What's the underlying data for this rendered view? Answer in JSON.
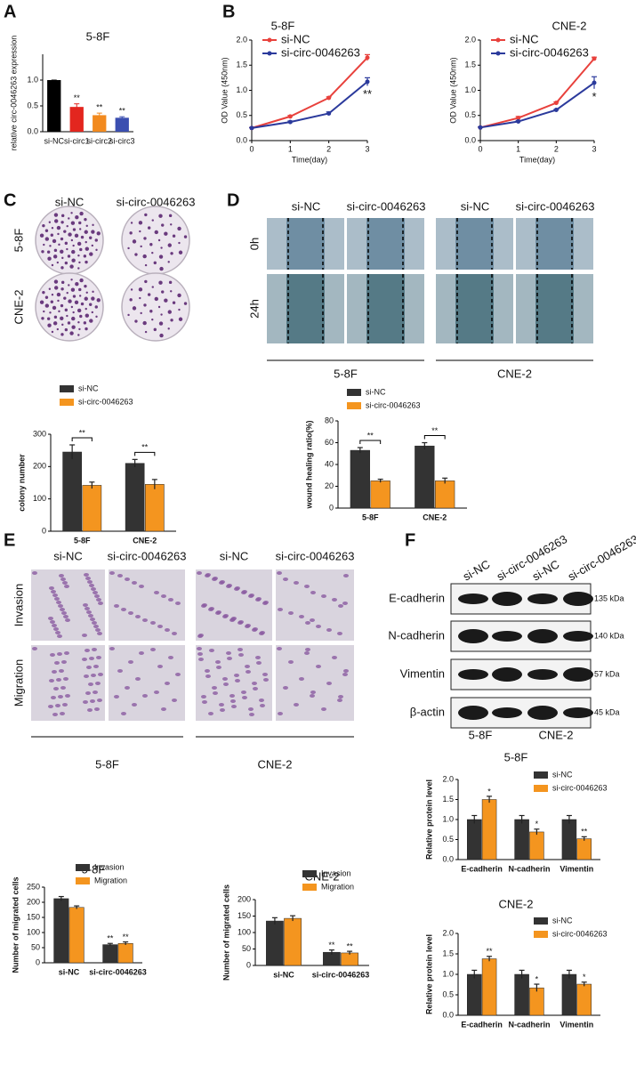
{
  "figure": {
    "panel_labels": [
      "A",
      "B",
      "C",
      "D",
      "E",
      "F"
    ],
    "panel_c": {
      "columns": [
        "si-NC",
        "si-circ-0046263"
      ],
      "rows": [
        "5-8F",
        "CNE-2"
      ]
    },
    "panel_d": {
      "columns": [
        "si-NC",
        "si-circ-0046263",
        "si-NC",
        "si-circ-0046263"
      ],
      "rows": [
        "0h",
        "24h"
      ],
      "groups": [
        "5-8F",
        "CNE-2"
      ]
    },
    "panel_e": {
      "columns": [
        "si-NC",
        "si-circ-0046263",
        "si-NC",
        "si-circ-0046263"
      ],
      "rows": [
        "Invasion",
        "Migration"
      ],
      "groups": [
        "5-8F",
        "CNE-2"
      ]
    },
    "panel_f": {
      "lanes": [
        "si-NC",
        "si-circ-0046263",
        "si-NC",
        "si-circ-0046263"
      ],
      "proteins": [
        "E-cadherin",
        "N-cadherin",
        "Vimentin",
        "β-actin"
      ],
      "sizes": [
        "135 kDa",
        "140 kDa",
        "57 kDa",
        "45 kDa"
      ],
      "groups": [
        "5-8F",
        "CNE-2"
      ]
    }
  },
  "chart_data": [
    {
      "type": "bar",
      "title": "5-8F",
      "y_label": "relative circ-0046263 expression",
      "categories": [
        "si-NC",
        "si-circ1",
        "si-circ2",
        "si-circ3"
      ],
      "values": [
        1.0,
        0.48,
        0.32,
        0.27
      ],
      "errors": [
        0,
        0.06,
        0.04,
        0.02
      ],
      "colors": [
        "#000000",
        "#e3261f",
        "#f28a1f",
        "#3b4fb0"
      ],
      "significance": [
        null,
        "**",
        "**",
        "**"
      ],
      "ylim": [
        0,
        1.5
      ],
      "yticks": [
        {
          "value": 0,
          "label": "0.0"
        },
        {
          "value": 0.5,
          "label": "0.5"
        },
        {
          "value": 1.0,
          "label": "1.0"
        }
      ]
    },
    {
      "type": "line",
      "title": "5-8F",
      "x_label": "Time(day)",
      "y_label": "OD Value (450nm)",
      "legend": "upper left",
      "x": [
        0,
        1,
        2,
        3
      ],
      "xlim": [
        0,
        3
      ],
      "xticks": [
        0,
        1,
        2,
        3
      ],
      "ylim": [
        0,
        2.0
      ],
      "yticks": [
        {
          "value": 0,
          "label": "0.0"
        },
        {
          "value": 0.5,
          "label": "0.5"
        },
        {
          "value": 1.0,
          "label": "1.0"
        },
        {
          "value": 1.5,
          "label": "1.5"
        },
        {
          "value": 2.0,
          "label": "2.0"
        }
      ],
      "series": [
        {
          "name": "si-NC",
          "color": "#e8413c",
          "values": [
            0.25,
            0.48,
            0.85,
            1.65
          ],
          "errors": [
            0.01,
            0.02,
            0.02,
            0.06
          ]
        },
        {
          "name": "si-circ-0046263",
          "color": "#2b3a9c",
          "values": [
            0.25,
            0.37,
            0.54,
            1.17
          ],
          "errors": [
            0.01,
            0.02,
            0.03,
            0.08
          ],
          "significance": [
            null,
            null,
            null,
            "**"
          ]
        }
      ]
    },
    {
      "type": "line",
      "title": "CNE-2",
      "x_label": "Time(day)",
      "y_label": "OD Value (450nm)",
      "legend": "upper left",
      "x": [
        0,
        1,
        2,
        3
      ],
      "xlim": [
        0,
        3
      ],
      "xticks": [
        0,
        1,
        2,
        3
      ],
      "ylim": [
        0,
        2.0
      ],
      "yticks": [
        {
          "value": 0,
          "label": "0.0"
        },
        {
          "value": 0.5,
          "label": "0.5"
        },
        {
          "value": 1.0,
          "label": "1.0"
        },
        {
          "value": 1.5,
          "label": "1.5"
        },
        {
          "value": 2.0,
          "label": "2.0"
        }
      ],
      "series": [
        {
          "name": "si-NC",
          "color": "#e8413c",
          "values": [
            0.26,
            0.45,
            0.75,
            1.63
          ],
          "errors": [
            0.01,
            0.03,
            0.02,
            0.03
          ]
        },
        {
          "name": "si-circ-0046263",
          "color": "#2b3a9c",
          "values": [
            0.26,
            0.38,
            0.61,
            1.15
          ],
          "errors": [
            0.01,
            0.02,
            0.01,
            0.12
          ],
          "significance": [
            null,
            null,
            null,
            "*"
          ]
        }
      ]
    },
    {
      "type": "bar",
      "y_label": "colony number",
      "legend": "upper left",
      "bracket": true,
      "categories": [
        "5-8F",
        "CNE-2"
      ],
      "ylim": [
        0,
        300
      ],
      "yticks": [
        0,
        100,
        200,
        300
      ],
      "series": [
        {
          "name": "si-NC",
          "color": "#333333",
          "values": [
            245,
            210
          ],
          "errors": [
            22,
            12
          ]
        },
        {
          "name": "si-circ-0046263",
          "color": "#f4951f",
          "values": [
            142,
            145
          ],
          "errors": [
            10,
            15
          ],
          "significance": [
            "**",
            "**"
          ]
        }
      ]
    },
    {
      "type": "bar",
      "y_label": "wound healing ratio(%)",
      "legend": "upper left",
      "bracket": true,
      "categories": [
        "5-8F",
        "CNE-2"
      ],
      "ylim": [
        0,
        80
      ],
      "yticks": [
        0,
        20,
        40,
        60,
        80
      ],
      "series": [
        {
          "name": "si-NC",
          "color": "#333333",
          "values": [
            53,
            57
          ],
          "errors": [
            2.5,
            3
          ]
        },
        {
          "name": "si-circ-0046263",
          "color": "#f4951f",
          "values": [
            25,
            25
          ],
          "errors": [
            1.5,
            2.5
          ],
          "significance": [
            "**",
            "**"
          ]
        }
      ]
    },
    {
      "type": "bar",
      "title": "5-8F",
      "y_label": "Number of migrated cells",
      "legend": "upper right",
      "categories": [
        "si-NC",
        "si-circ-0046263"
      ],
      "ylim": [
        0,
        250
      ],
      "yticks": [
        0,
        50,
        100,
        150,
        200,
        250
      ],
      "series": [
        {
          "name": "Invasion",
          "color": "#333333",
          "values": [
            212,
            60
          ],
          "errors": [
            7,
            4
          ],
          "significance": [
            null,
            "**"
          ]
        },
        {
          "name": "Migration",
          "color": "#f4951f",
          "values": [
            183,
            64
          ],
          "errors": [
            5,
            5
          ],
          "significance": [
            null,
            "**"
          ]
        }
      ]
    },
    {
      "type": "bar",
      "title": "CNE-2",
      "y_label": "Number of migrated cells",
      "legend": "upper right",
      "categories": [
        "si-NC",
        "si-circ-0046263"
      ],
      "ylim": [
        0,
        200
      ],
      "yticks": [
        0,
        50,
        100,
        150,
        200
      ],
      "series": [
        {
          "name": "Invasion",
          "color": "#333333",
          "values": [
            135,
            40
          ],
          "errors": [
            10,
            7
          ],
          "significance": [
            null,
            "**"
          ]
        },
        {
          "name": "Migration",
          "color": "#f4951f",
          "values": [
            143,
            38
          ],
          "errors": [
            8,
            5
          ],
          "significance": [
            null,
            "**"
          ]
        }
      ]
    },
    {
      "type": "bar",
      "title": "5-8F",
      "y_label": "Relative protein level",
      "legend": "upper right",
      "categories": [
        "E-cadherin",
        "N-cadherin",
        "Vimentin"
      ],
      "ylim": [
        0,
        2.0
      ],
      "yticks": [
        {
          "value": 0,
          "label": "0.0"
        },
        {
          "value": 0.5,
          "label": "0.5"
        },
        {
          "value": 1.0,
          "label": "1.0"
        },
        {
          "value": 1.5,
          "label": "1.5"
        },
        {
          "value": 2.0,
          "label": "2.0"
        }
      ],
      "series": [
        {
          "name": "si-NC",
          "color": "#333333",
          "values": [
            1.0,
            1.0,
            1.0
          ],
          "errors": [
            0.1,
            0.1,
            0.1
          ]
        },
        {
          "name": "si-circ-0046263",
          "color": "#f4951f",
          "values": [
            1.5,
            0.69,
            0.52
          ],
          "errors": [
            0.08,
            0.07,
            0.05
          ],
          "significance": [
            "*",
            "*",
            "**"
          ]
        }
      ]
    },
    {
      "type": "bar",
      "title": "CNE-2",
      "y_label": "Relative protein level",
      "legend": "upper right",
      "categories": [
        "E-cadherin",
        "N-cadherin",
        "Vimentin"
      ],
      "ylim": [
        0,
        2.0
      ],
      "yticks": [
        {
          "value": 0,
          "label": "0.0"
        },
        {
          "value": 0.5,
          "label": "0.5"
        },
        {
          "value": 1.0,
          "label": "1.0"
        },
        {
          "value": 1.5,
          "label": "1.5"
        },
        {
          "value": 2.0,
          "label": "2.0"
        }
      ],
      "series": [
        {
          "name": "si-NC",
          "color": "#333333",
          "values": [
            1.0,
            1.0,
            1.0
          ],
          "errors": [
            0.1,
            0.1,
            0.1
          ]
        },
        {
          "name": "si-circ-0046263",
          "color": "#f4951f",
          "values": [
            1.38,
            0.67,
            0.76
          ],
          "errors": [
            0.06,
            0.09,
            0.05
          ],
          "significance": [
            "**",
            "*",
            "*"
          ]
        }
      ]
    }
  ]
}
